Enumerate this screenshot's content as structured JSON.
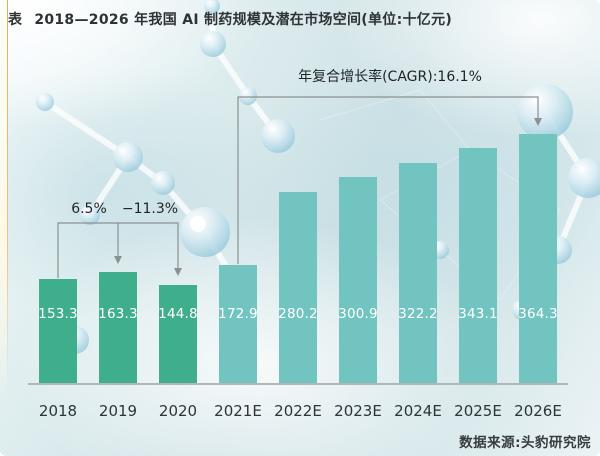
{
  "header": {
    "tag": "表",
    "title": "2018—2026 年我国 AI 制药规模及潜在市场空间(单位:十亿元)"
  },
  "chart_data": {
    "type": "bar",
    "title": "2018—2026 年我国 AI 制药规模及潜在市场空间",
    "unit": "十亿元",
    "categories": [
      "2018",
      "2019",
      "2020",
      "2021E",
      "2022E",
      "2023E",
      "2024E",
      "2025E",
      "2026E"
    ],
    "values": [
      153.3,
      163.3,
      144.8,
      172.9,
      280.2,
      300.9,
      322.2,
      343.1,
      364.3
    ],
    "annotations": {
      "growth_2018_2019": "6.5%",
      "growth_2019_2020": "−11.3%",
      "cagr_2021_2026": "年复合增长率(CAGR):16.1%"
    },
    "colors": {
      "actual_bar": "#3fae8c",
      "estimate_bar": "#72c4c1",
      "value_label": "#ffffff",
      "bracket_line": "#8a9191"
    },
    "ylim": [
      0,
      420
    ],
    "grid": false,
    "legend": false
  },
  "footer": {
    "source": "数据来源:头豹研究院"
  }
}
